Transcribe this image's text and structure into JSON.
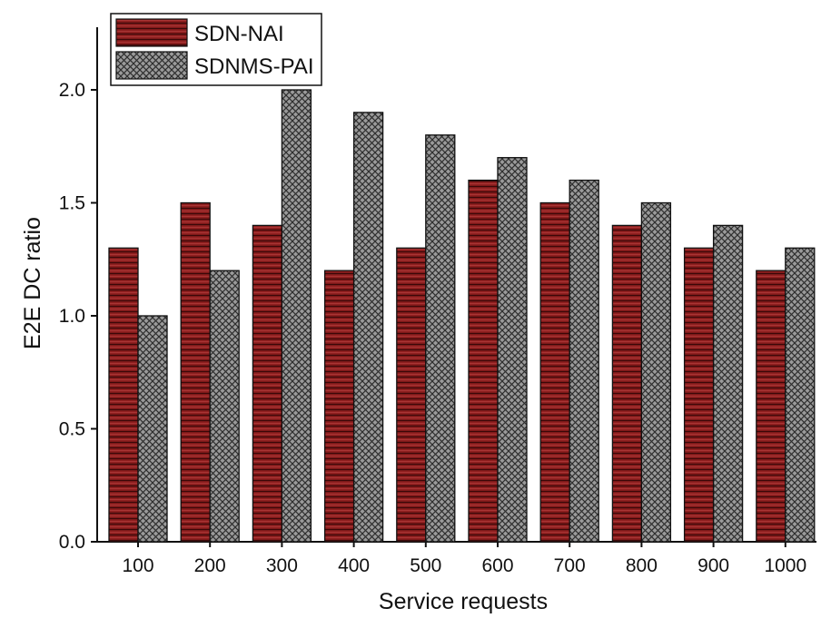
{
  "chart_data": {
    "type": "bar",
    "title": "",
    "xlabel": "Service requests",
    "ylabel": "E2E DC ratio",
    "categories": [
      "100",
      "200",
      "300",
      "400",
      "500",
      "600",
      "700",
      "800",
      "900",
      "1000"
    ],
    "series": [
      {
        "name": "SDN-NAI",
        "values": [
          1.3,
          1.5,
          1.4,
          1.2,
          1.3,
          1.6,
          1.5,
          1.4,
          1.3,
          1.2
        ],
        "color": "#7a1a1a",
        "pattern": "horizontal-lines"
      },
      {
        "name": "SDNMS-PAI",
        "values": [
          1.0,
          1.2,
          2.0,
          1.9,
          1.8,
          1.7,
          1.6,
          1.5,
          1.4,
          1.3
        ],
        "color": "#8c8c8c",
        "pattern": "crosshatch"
      }
    ],
    "ylim": [
      0,
      2.25
    ],
    "yticks": [
      "0.0",
      "0.5",
      "1.0",
      "1.5",
      "2.0"
    ],
    "grid": false,
    "legend": "top-left"
  }
}
